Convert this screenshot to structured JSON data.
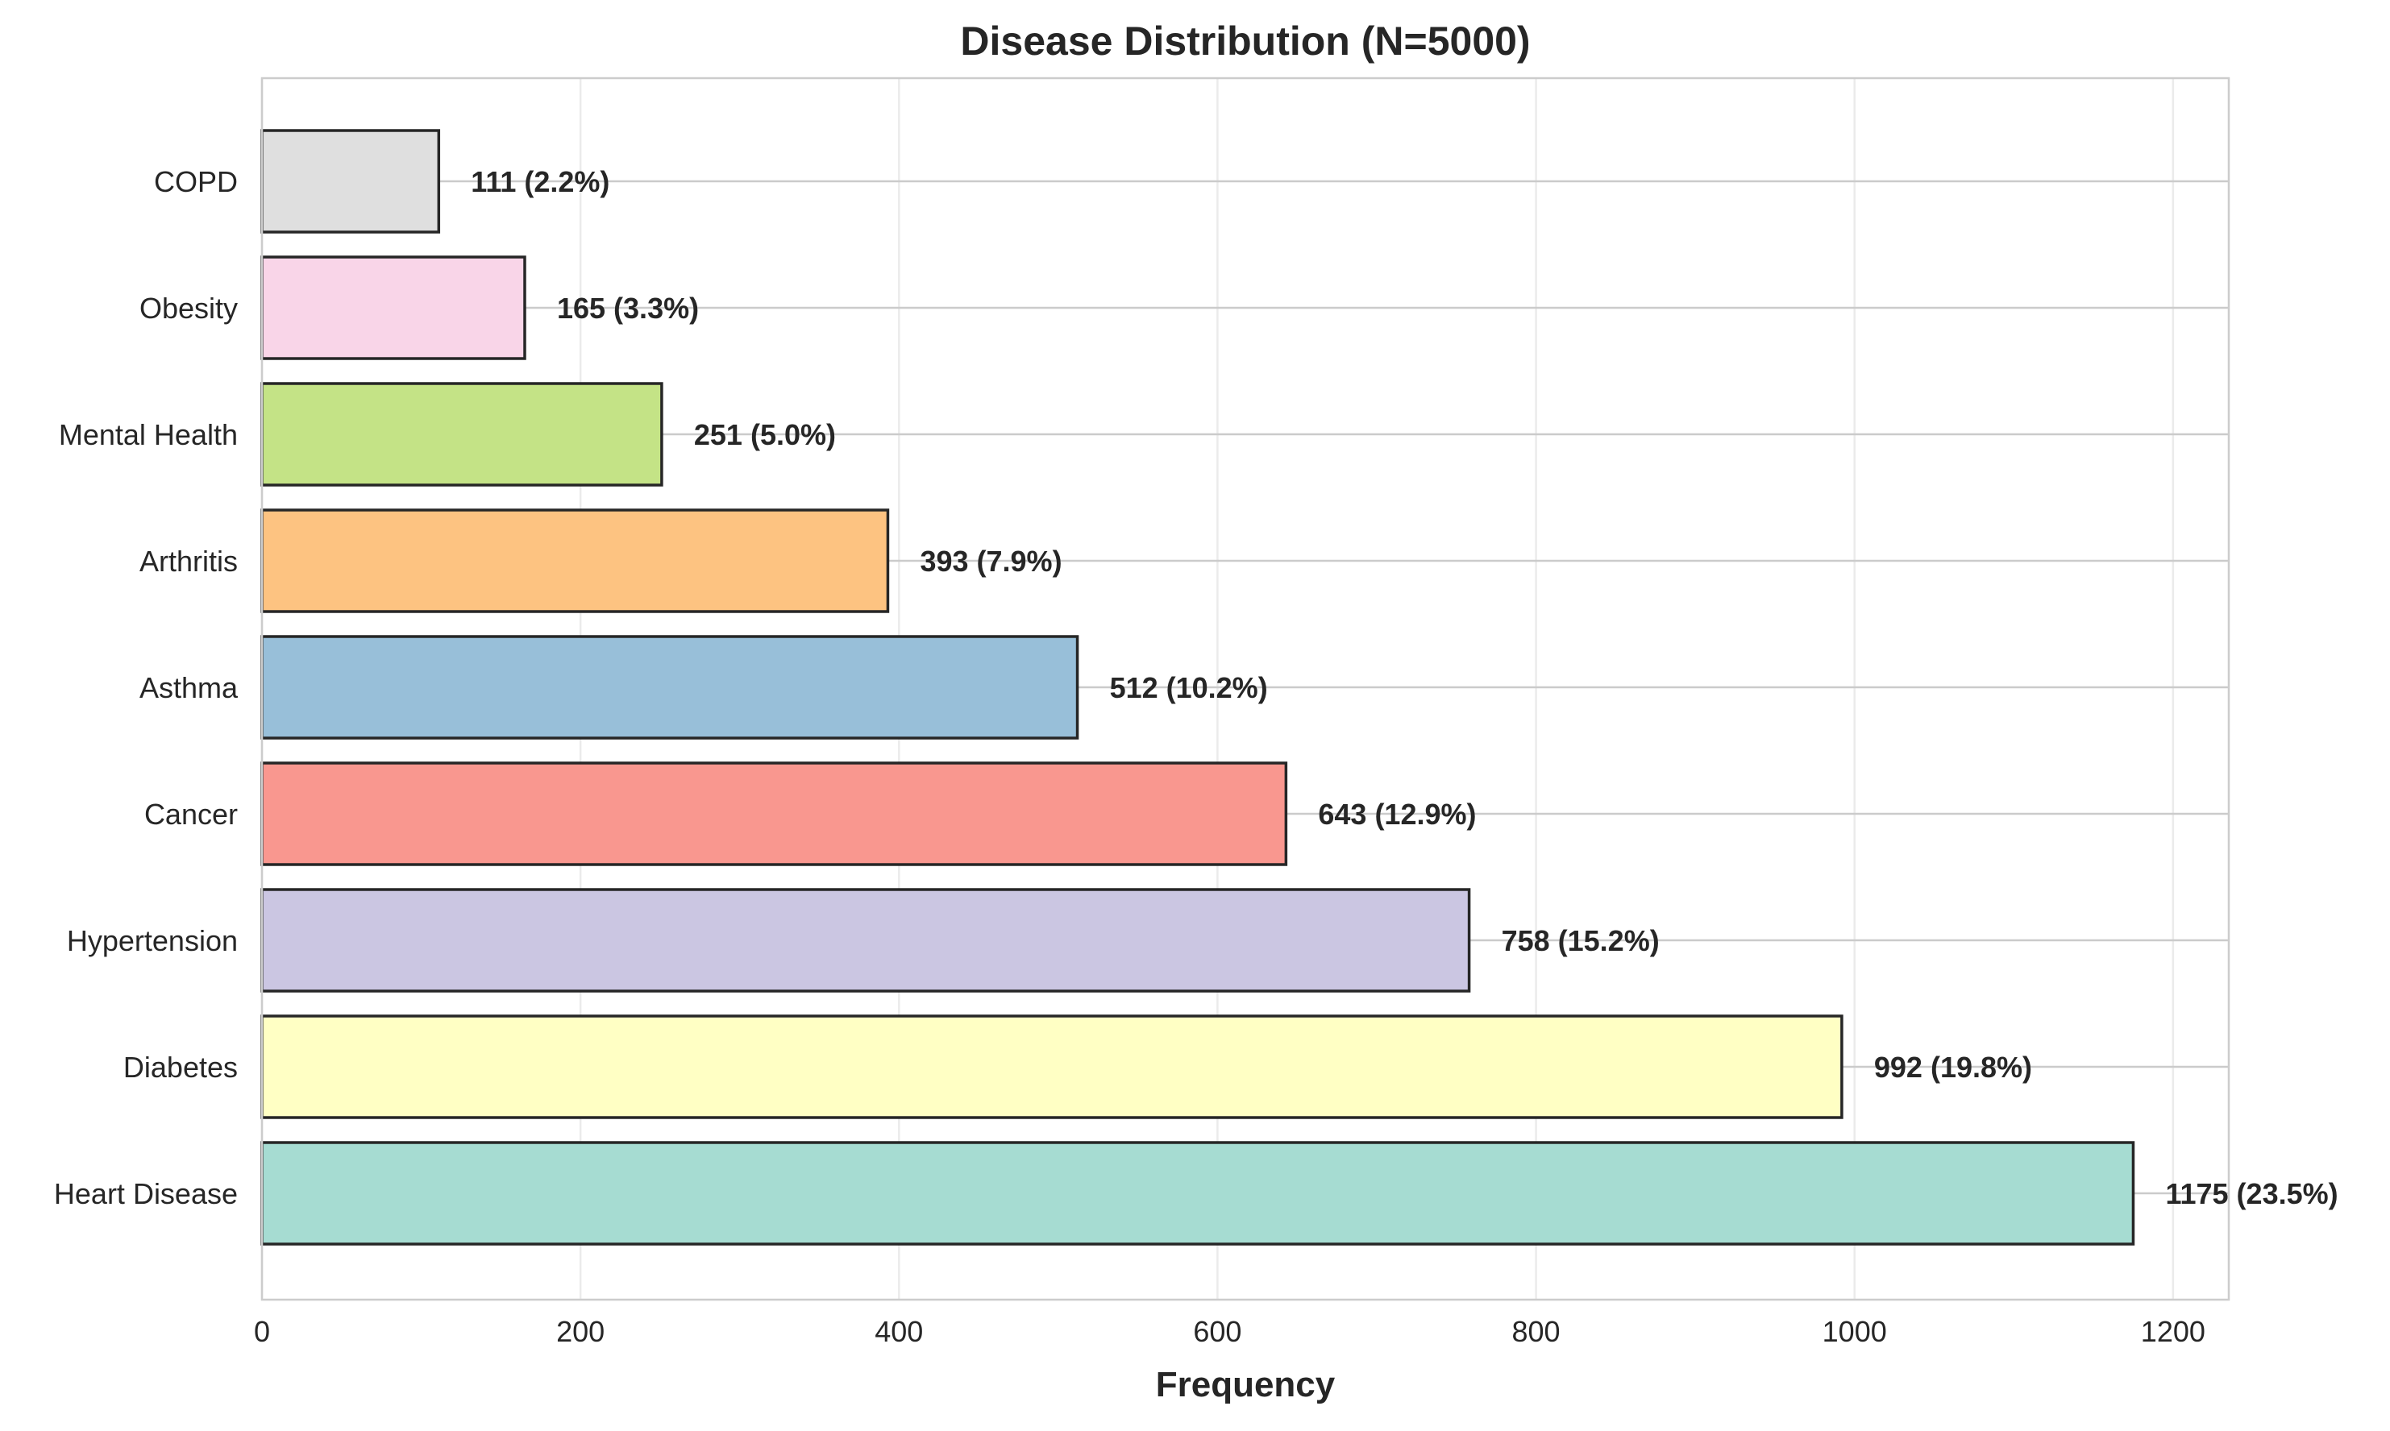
{
  "chart_data": {
    "type": "bar",
    "orientation": "horizontal",
    "title": "Disease Distribution (N=5000)",
    "xlabel": "Frequency",
    "ylabel": "",
    "xlim": [
      0,
      1235
    ],
    "xticks": [
      0,
      200,
      400,
      600,
      800,
      1000,
      1200
    ],
    "grid": true,
    "categories": [
      "Heart Disease",
      "Diabetes",
      "Hypertension",
      "Cancer",
      "Asthma",
      "Arthritis",
      "Mental Health",
      "Obesity",
      "COPD"
    ],
    "values": [
      1175,
      992,
      758,
      643,
      512,
      393,
      251,
      165,
      111
    ],
    "data_labels": [
      "1175 (23.5%)",
      "992 (19.8%)",
      "758 (15.2%)",
      "643 (12.9%)",
      "512 (10.2%)",
      "393 (7.9%)",
      "251 (5.0%)",
      "165 (3.3%)",
      "111 (2.2%)"
    ],
    "colors": [
      "#a6dcd2",
      "#ffffc4",
      "#cbc6e2",
      "#f9978f",
      "#98bfd9",
      "#fdc381",
      "#c4e386",
      "#f9d5e8",
      "#dfdfdf"
    ],
    "edge_color": "#262626"
  }
}
